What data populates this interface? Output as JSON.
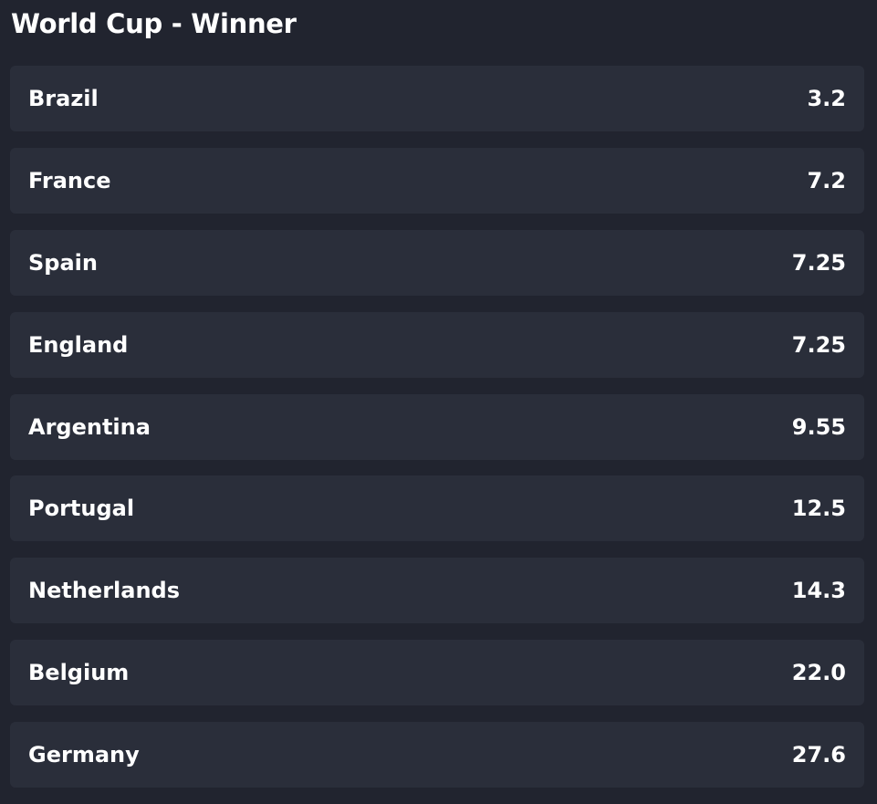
{
  "header": {
    "title": "World Cup - Winner"
  },
  "selections": [
    {
      "name": "Brazil",
      "odds": "3.2"
    },
    {
      "name": "France",
      "odds": "7.2"
    },
    {
      "name": "Spain",
      "odds": "7.25"
    },
    {
      "name": "England",
      "odds": "7.25"
    },
    {
      "name": "Argentina",
      "odds": "9.55"
    },
    {
      "name": "Portugal",
      "odds": "12.5"
    },
    {
      "name": "Netherlands",
      "odds": "14.3"
    },
    {
      "name": "Belgium",
      "odds": "22.0"
    },
    {
      "name": "Germany",
      "odds": "27.6"
    }
  ]
}
